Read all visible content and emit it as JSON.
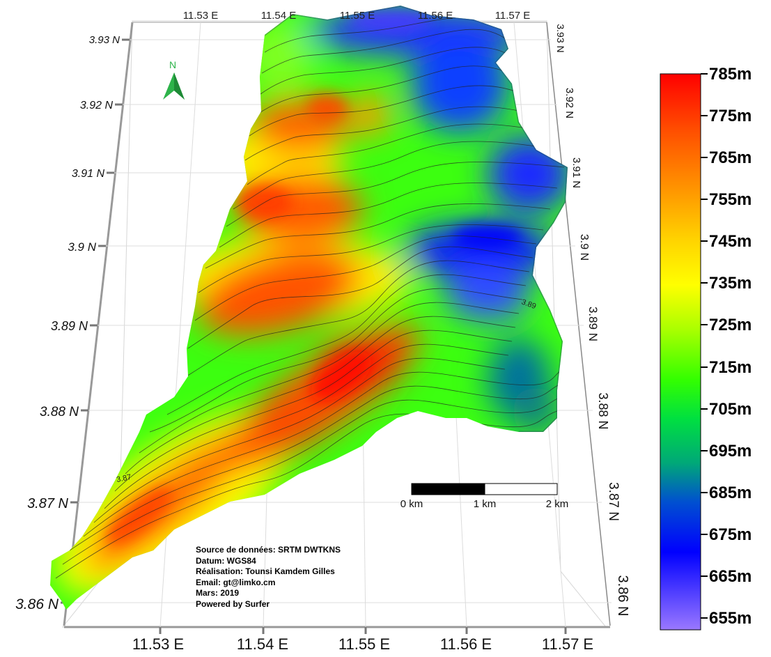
{
  "top_lon_labels": [
    "11.53 E",
    "11.54 E",
    "11.55 E",
    "11.56 E",
    "11.57 E"
  ],
  "bottom_lon_labels": [
    "11.53 E",
    "11.54 E",
    "11.55 E",
    "11.56 E",
    "11.57 E"
  ],
  "left_lat_labels": [
    "3.93 N",
    "3.92 N",
    "3.91 N",
    "3.9 N",
    "3.89 N",
    "3.88 N",
    "3.87 N",
    "3.86 N"
  ],
  "right_lat_labels": [
    "3.93 N",
    "3.92 N",
    "3.91 N",
    "3.9 N",
    "3.89 N",
    "3.88 N",
    "3.87 N",
    "3.86 N"
  ],
  "north_arrow": {
    "label": "N",
    "icon": "north-arrow-icon",
    "color": "#2db34a"
  },
  "scale_bar": {
    "labels": [
      "0 km",
      "1 km",
      "2 km"
    ]
  },
  "contour_labels": [
    "3.87",
    "3.89"
  ],
  "legend": {
    "labels": [
      "785m",
      "775m",
      "765m",
      "755m",
      "745m",
      "735m",
      "725m",
      "715m",
      "705m",
      "695m",
      "685m",
      "675m",
      "665m",
      "655m"
    ],
    "colors": [
      "#ff0000",
      "#ff4d00",
      "#ff8a00",
      "#ffd000",
      "#ffff00",
      "#b8ff00",
      "#55ff00",
      "#00ee00",
      "#00b858",
      "#1565c8",
      "#0000ff",
      "#4a4aff",
      "#9370ff"
    ]
  },
  "credits": [
    "Source de données: SRTM DWTKNS",
    "Datum: WGS84",
    "Réalisation: Tounsi Kamdem Gilles",
    "Email: gt@limko.cm",
    "Mars: 2019",
    "Powered by Surfer"
  ]
}
